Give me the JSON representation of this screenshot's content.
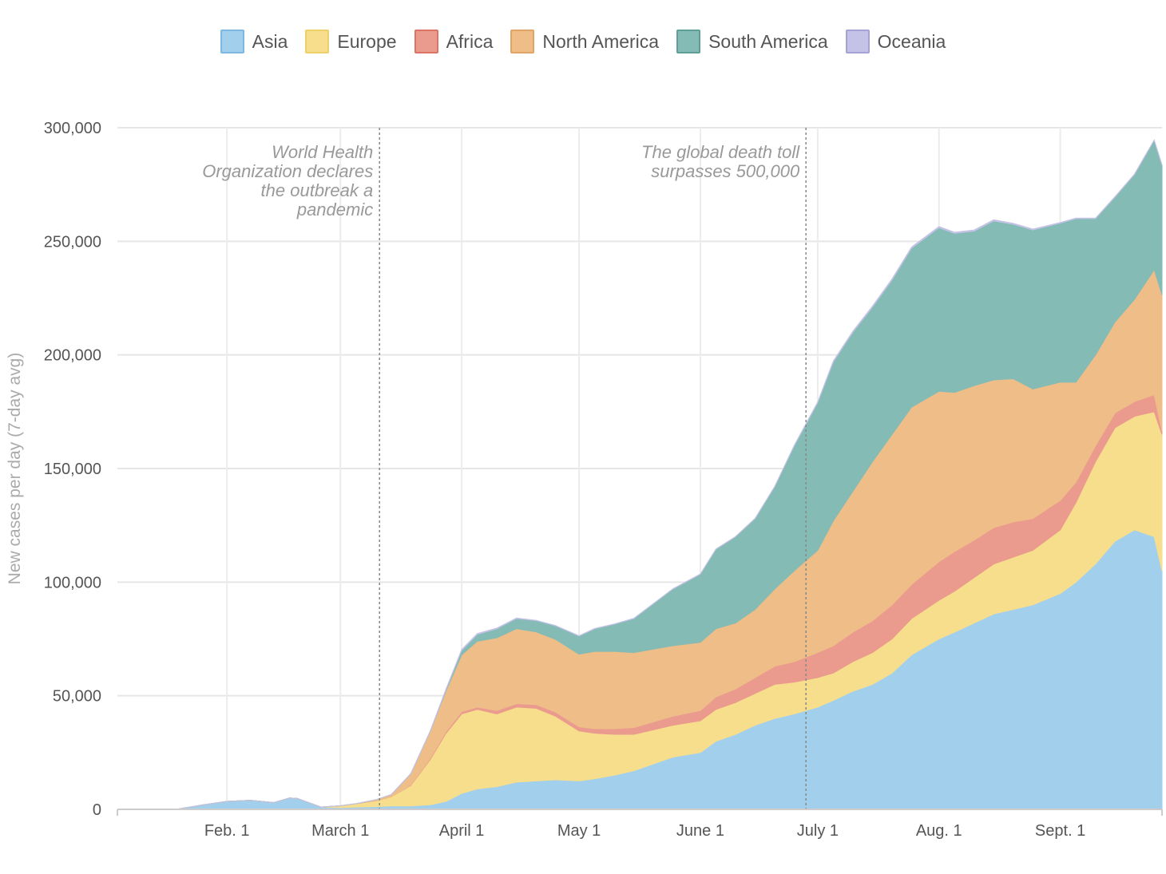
{
  "chart_data": {
    "type": "area",
    "stacked": true,
    "ylabel": "New cases per day (7-day avg)",
    "ylim": [
      0,
      300000
    ],
    "y_ticks": [
      0,
      50000,
      100000,
      150000,
      200000,
      250000,
      300000
    ],
    "y_tick_labels": [
      "0",
      "50,000",
      "100,000",
      "150,000",
      "200,000",
      "250,000",
      "300,000"
    ],
    "xlim": [
      "2020-01-04",
      "2020-09-27"
    ],
    "x_ticks": [
      "2020-02-01",
      "2020-03-01",
      "2020-04-01",
      "2020-05-01",
      "2020-06-01",
      "2020-07-01",
      "2020-08-01",
      "2020-09-01"
    ],
    "x_tick_labels": [
      "Feb. 1",
      "March 1",
      "April 1",
      "May 1",
      "June 1",
      "July 1",
      "Aug. 1",
      "Sept. 1"
    ],
    "grid": true,
    "legend_position": "top-center",
    "x": [
      "2020-01-04",
      "2020-01-19",
      "2020-01-26",
      "2020-02-01",
      "2020-02-07",
      "2020-02-13",
      "2020-02-17",
      "2020-02-19",
      "2020-02-25",
      "2020-03-01",
      "2020-03-05",
      "2020-03-10",
      "2020-03-14",
      "2020-03-19",
      "2020-03-24",
      "2020-03-28",
      "2020-04-01",
      "2020-04-05",
      "2020-04-10",
      "2020-04-15",
      "2020-04-20",
      "2020-04-25",
      "2020-05-01",
      "2020-05-05",
      "2020-05-10",
      "2020-05-15",
      "2020-05-20",
      "2020-05-25",
      "2020-06-01",
      "2020-06-05",
      "2020-06-10",
      "2020-06-15",
      "2020-06-20",
      "2020-06-25",
      "2020-07-01",
      "2020-07-05",
      "2020-07-10",
      "2020-07-15",
      "2020-07-20",
      "2020-07-25",
      "2020-08-01",
      "2020-08-05",
      "2020-08-10",
      "2020-08-15",
      "2020-08-20",
      "2020-08-25",
      "2020-09-01",
      "2020-09-05",
      "2020-09-10",
      "2020-09-15",
      "2020-09-20",
      "2020-09-25",
      "2020-09-27"
    ],
    "series": [
      {
        "name": "Asia",
        "color": "#a1cfec",
        "stroke": "#7bb9e3",
        "values": [
          0,
          0,
          2000,
          3500,
          4000,
          3000,
          5000,
          4800,
          1000,
          800,
          1000,
          1200,
          1500,
          1500,
          2000,
          3500,
          7000,
          9000,
          10000,
          12000,
          12500,
          13000,
          12500,
          13500,
          15000,
          17000,
          20000,
          23000,
          25000,
          30000,
          33000,
          37000,
          40000,
          42000,
          45000,
          48000,
          52000,
          55000,
          60000,
          68000,
          75000,
          78000,
          82000,
          86000,
          88000,
          90000,
          95000,
          100000,
          108000,
          118000,
          123000,
          120000,
          105000
        ]
      },
      {
        "name": "Europe",
        "color": "#f6de8d",
        "stroke": "#eed06a",
        "values": [
          0,
          0,
          0,
          0,
          0,
          0,
          0,
          0,
          0,
          800,
          1500,
          2500,
          4000,
          9000,
          20000,
          30000,
          35000,
          35000,
          32000,
          33000,
          32000,
          28000,
          22000,
          20000,
          18000,
          16000,
          15000,
          14000,
          14000,
          14000,
          14000,
          14000,
          15000,
          14000,
          13000,
          12000,
          13000,
          14000,
          15000,
          16000,
          17000,
          18000,
          20000,
          22000,
          23000,
          24000,
          28000,
          35000,
          45000,
          50000,
          50000,
          55000,
          60000
        ]
      },
      {
        "name": "Africa",
        "color": "#ea9b8e",
        "stroke": "#db7464",
        "values": [
          0,
          0,
          0,
          0,
          0,
          0,
          0,
          0,
          0,
          0,
          0,
          0,
          0,
          200,
          500,
          700,
          1000,
          1000,
          1500,
          1500,
          1600,
          1800,
          1800,
          2000,
          2500,
          3000,
          3500,
          4000,
          4500,
          5500,
          6000,
          7000,
          8000,
          9000,
          11000,
          12000,
          13000,
          14000,
          15000,
          15000,
          17000,
          17500,
          16500,
          16000,
          15500,
          14000,
          13000,
          9000,
          7000,
          6500,
          6500,
          7500,
          1500
        ]
      },
      {
        "name": "North America",
        "color": "#efbd88",
        "stroke": "#e0a565",
        "values": [
          0,
          0,
          0,
          0,
          0,
          0,
          0,
          0,
          0,
          0,
          0,
          500,
          1000,
          5000,
          12000,
          18000,
          25000,
          29000,
          32000,
          33000,
          32000,
          32000,
          32000,
          34000,
          34000,
          33000,
          32000,
          31000,
          30000,
          30000,
          29000,
          30000,
          34000,
          40000,
          45000,
          55000,
          62000,
          70000,
          75000,
          78000,
          75000,
          70000,
          68000,
          65000,
          63000,
          57000,
          52000,
          44000,
          40000,
          40000,
          45000,
          55000,
          60000
        ]
      },
      {
        "name": "South America",
        "color": "#84bbb5",
        "stroke": "#5e9e96",
        "values": [
          0,
          0,
          0,
          0,
          0,
          0,
          0,
          0,
          0,
          0,
          0,
          0,
          0,
          0,
          0,
          500,
          2000,
          3000,
          4000,
          4500,
          5000,
          6000,
          8000,
          10000,
          12000,
          15000,
          20000,
          25000,
          30000,
          35000,
          38000,
          40000,
          45000,
          55000,
          65000,
          70000,
          70000,
          68000,
          68000,
          70000,
          72000,
          70000,
          68000,
          70000,
          68000,
          70000,
          70000,
          72000,
          60000,
          55000,
          55000,
          57000,
          57000
        ]
      },
      {
        "name": "Oceania",
        "color": "#c4c2e6",
        "stroke": "#a5a3d6",
        "values": [
          0,
          0,
          0,
          0,
          0,
          0,
          0,
          0,
          0,
          0,
          0,
          0,
          0,
          100,
          200,
          300,
          400,
          400,
          300,
          200,
          100,
          100,
          100,
          100,
          100,
          100,
          100,
          100,
          100,
          100,
          100,
          100,
          100,
          200,
          300,
          400,
          500,
          500,
          500,
          500,
          500,
          500,
          500,
          500,
          400,
          400,
          300,
          200,
          200,
          200,
          200,
          100,
          100
        ]
      }
    ],
    "annotations": [
      {
        "date": "2020-03-11",
        "lines": [
          "World Health",
          "Organization declares",
          "the outbreak a",
          "pandemic"
        ]
      },
      {
        "date": "2020-06-28",
        "lines": [
          "The global death toll",
          "surpasses 500,000"
        ]
      }
    ]
  }
}
